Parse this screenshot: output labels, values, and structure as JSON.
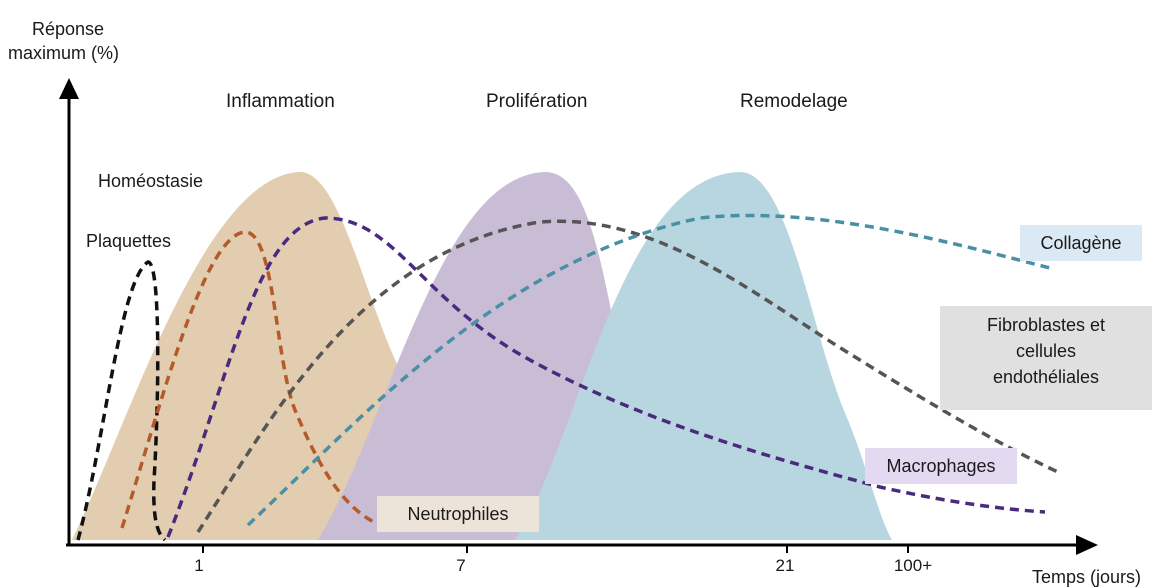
{
  "y_axis_label": [
    "Réponse",
    "maximum (%)"
  ],
  "x_axis_label": "Temps (jours)",
  "x_ticks": [
    "1",
    "7",
    "21",
    "100+"
  ],
  "phases": {
    "inflammation": "Inflammation",
    "proliferation": "Prolifération",
    "remodelage": "Remodelage",
    "homeostasie": "Homéostasie"
  },
  "curves": {
    "plaquettes": "Plaquettes",
    "neutrophiles": "Neutrophiles",
    "macrophages": "Macrophages",
    "fibroblastes": [
      "Fibroblastes et",
      "cellules",
      "endothéliales"
    ],
    "collagene": "Collagène"
  },
  "colors": {
    "inflammation_fill": "#e2cdb0",
    "proliferation_fill": "#c9bdd6",
    "remodelage_fill": "#b7d6e0",
    "plaquettes": "#111111",
    "neutrophiles": "#b55a2a",
    "macrophages": "#4b2a7e",
    "fibroblastes": "#555555",
    "collagene": "#4a90a4",
    "neutrophiles_box": "#ece4d8",
    "macrophages_box": "#e3d9f1",
    "fibroblastes_box": "#e0e0e0",
    "collagene_box": "#dbe9f4"
  }
}
